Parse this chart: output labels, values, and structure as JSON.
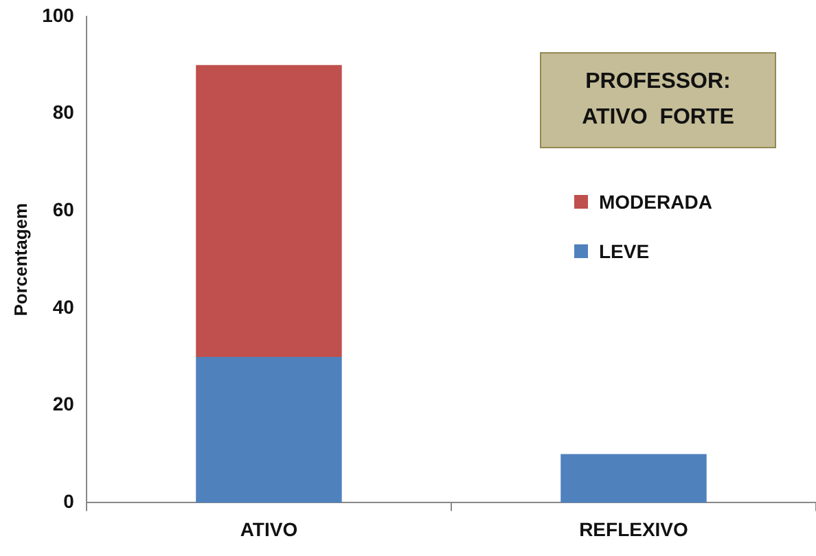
{
  "chart_data": {
    "type": "bar",
    "title": "PROFESSOR:\nATIVO  FORTE",
    "ylabel": "Porcentagem",
    "categories": [
      "ATIVO",
      "REFLEXIVO"
    ],
    "stacked": true,
    "series": [
      {
        "name": "LEVE",
        "color": "#4f81bd",
        "values": [
          30,
          10
        ]
      },
      {
        "name": "MODERADA",
        "color": "#c0504d",
        "values": [
          60,
          0
        ]
      }
    ],
    "ylim": [
      0,
      100
    ],
    "yticks": [
      0,
      20,
      40,
      60,
      80,
      100
    ],
    "grid": false,
    "legend": "right"
  }
}
